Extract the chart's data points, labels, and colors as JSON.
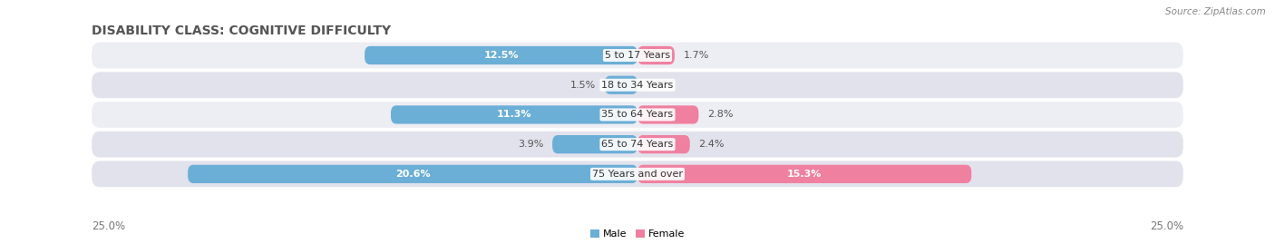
{
  "title": "DISABILITY CLASS: COGNITIVE DIFFICULTY",
  "source": "Source: ZipAtlas.com",
  "categories": [
    "5 to 17 Years",
    "18 to 34 Years",
    "35 to 64 Years",
    "65 to 74 Years",
    "75 Years and over"
  ],
  "male_values": [
    12.5,
    1.5,
    11.3,
    3.9,
    20.6
  ],
  "female_values": [
    1.7,
    0.0,
    2.8,
    2.4,
    15.3
  ],
  "male_color": "#6baed6",
  "female_color": "#f080a0",
  "row_bg_color_light": "#ededf4",
  "row_bg_color_dark": "#e2e2ec",
  "axis_max": 25.0,
  "x_tick_labels": [
    "25.0%",
    "25.0%"
  ],
  "legend_labels": [
    "Male",
    "Female"
  ],
  "title_fontsize": 10,
  "label_fontsize": 8,
  "cat_fontsize": 8,
  "axis_fontsize": 8.5
}
